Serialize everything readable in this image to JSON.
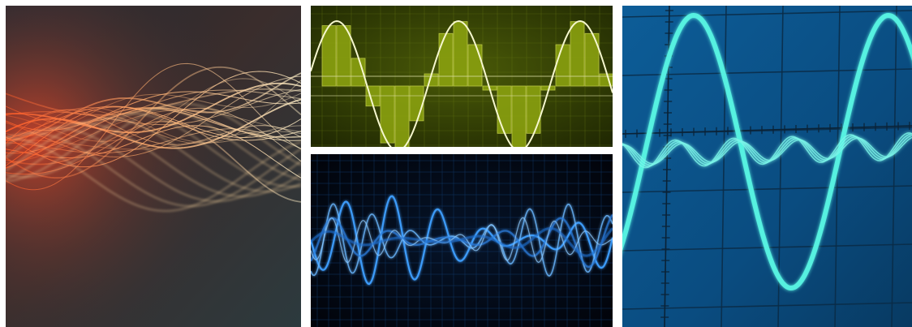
{
  "gallery": {
    "tiles": [
      {
        "icon": "light-streaks-wave-image",
        "colors": {
          "base_dark": "#252a31",
          "glow": "#ff6a2a",
          "highlight": "#ffe7b0"
        }
      },
      {
        "icon": "sampled-sine-wave-image",
        "colors": {
          "background": "#2f3a04",
          "bars": "#8aa10f",
          "curve": "#f4f5c8"
        }
      },
      {
        "icon": "blue-waveform-image",
        "colors": {
          "background": "#02060f",
          "wave": "#3aa0ff",
          "grid": "#123a6a"
        }
      },
      {
        "icon": "oscilloscope-sine-image",
        "colors": {
          "background": "#0b4f86",
          "trace": "#56f2e2",
          "grid": "#0a2a44"
        }
      }
    ]
  }
}
